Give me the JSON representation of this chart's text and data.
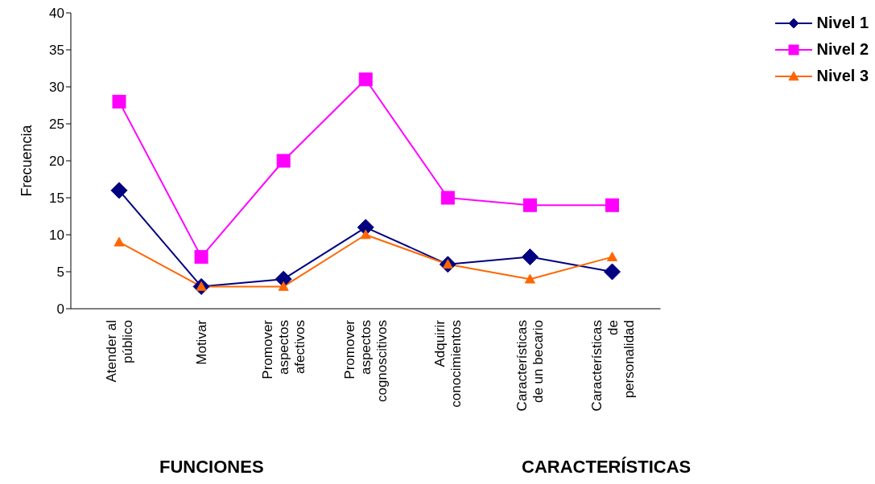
{
  "chart_data": {
    "type": "line",
    "ylabel": "Frecuencia",
    "categories": [
      "Atender al público",
      "Motivar",
      "Promover aspectos afectivos",
      "Promover aspectos cognoscitivos",
      "Adquirir conocimientos",
      "Características de un becario",
      "Características de personalidad"
    ],
    "series": [
      {
        "name": "Nivel 1",
        "color": "#000080",
        "marker": "diamond",
        "values": [
          16,
          3,
          4,
          11,
          6,
          7,
          5
        ]
      },
      {
        "name": "Nivel 2",
        "color": "#ff00ff",
        "marker": "square",
        "values": [
          28,
          7,
          20,
          31,
          15,
          14,
          14
        ]
      },
      {
        "name": "Nivel 3",
        "color": "#ff6600",
        "marker": "triangle",
        "values": [
          9,
          3,
          3,
          10,
          6,
          4,
          7
        ]
      }
    ],
    "ylim": [
      0,
      40
    ],
    "yticks": [
      0,
      5,
      10,
      15,
      20,
      25,
      30,
      35,
      40
    ],
    "grid": false,
    "legend": "top right",
    "annotations": [
      "FUNCIONES",
      "CARACTERÍSTICAS"
    ]
  }
}
